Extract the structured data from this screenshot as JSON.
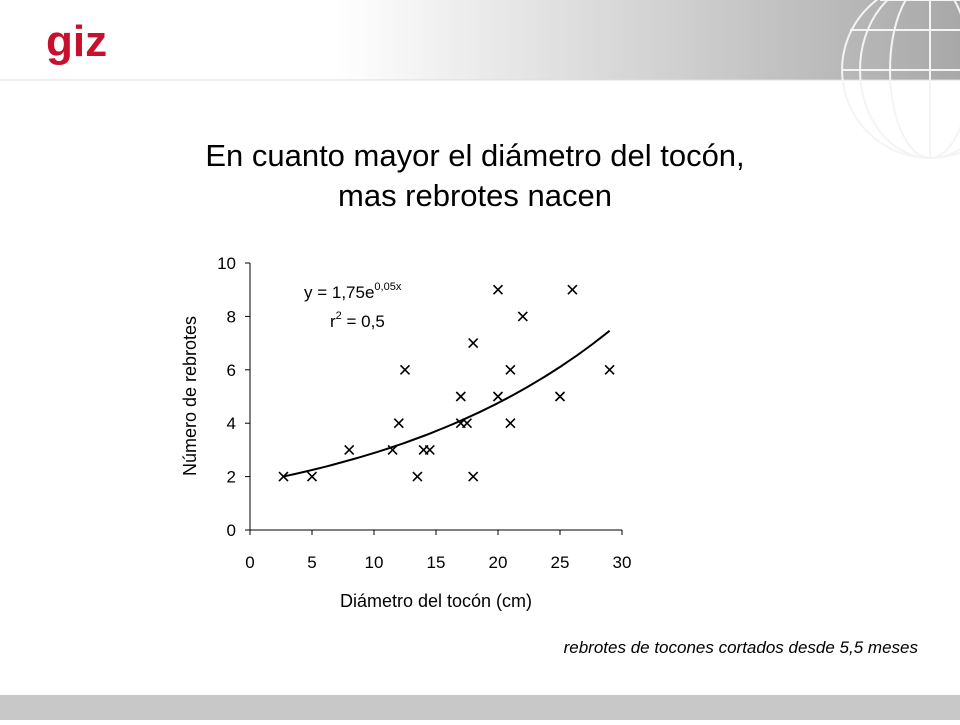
{
  "logo": "giz",
  "chart_data": {
    "type": "scatter",
    "title": [
      "En cuanto mayor el diámetro del tocón,",
      "mas rebrotes nacen"
    ],
    "x_label": "Diámetro del tocón (cm)",
    "y_label": "Número de rebrotes",
    "caption": "rebrotes de tocones cortados desde 5,5 meses",
    "x": [
      2.7,
      5,
      8,
      11.5,
      12,
      12.5,
      13.5,
      14,
      14.5,
      17,
      17,
      17.5,
      18,
      18,
      20,
      20,
      21,
      21,
      22,
      25,
      26,
      29
    ],
    "values": [
      2,
      2,
      3,
      3,
      4,
      6,
      2,
      3,
      3,
      5,
      4,
      4,
      7,
      2,
      9,
      5,
      6,
      4,
      8,
      5,
      9,
      6
    ],
    "color": "#000000",
    "xlim": [
      0,
      30
    ],
    "xticks": [
      0,
      5,
      10,
      15,
      20,
      25,
      30
    ],
    "ylim": [
      0,
      10
    ],
    "yticks": [
      0,
      2,
      4,
      6,
      8,
      10
    ],
    "trendline": {
      "a": 1.75,
      "b": 0.05,
      "equation": [
        "y = 1,75e",
        "0,05x"
      ],
      "r2": [
        "r",
        "2",
        " = 0,5"
      ]
    }
  }
}
